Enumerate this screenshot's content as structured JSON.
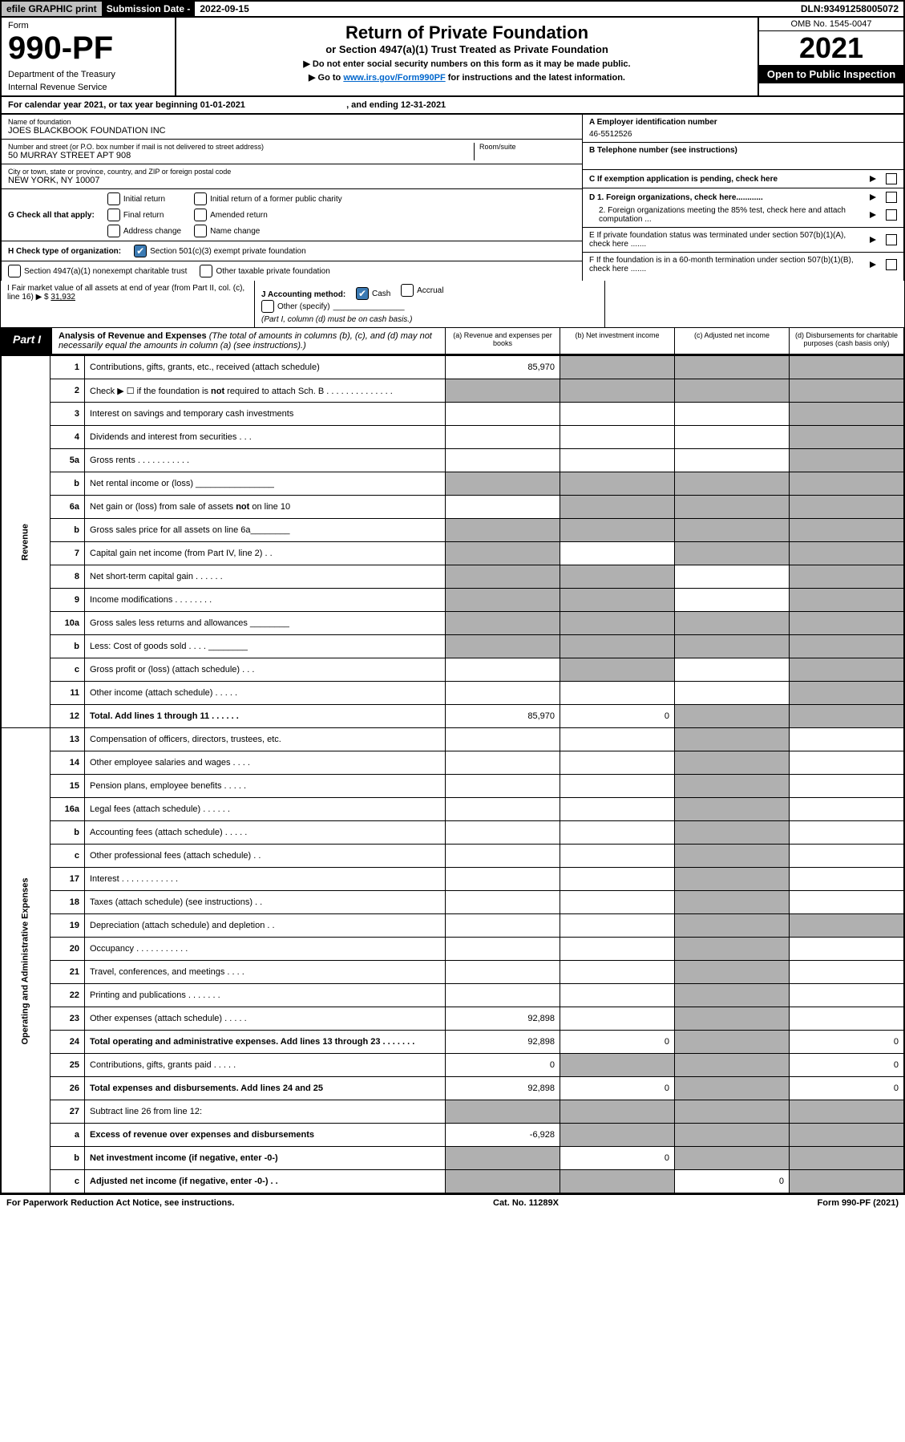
{
  "topbar": {
    "efile": "efile GRAPHIC print",
    "subdate_label": "Submission Date - ",
    "subdate": "2022-09-15",
    "dln_label": "DLN: ",
    "dln": "93491258005072"
  },
  "hdr": {
    "form": "Form",
    "formno": "990-PF",
    "dept1": "Department of the Treasury",
    "dept2": "Internal Revenue Service",
    "title": "Return of Private Foundation",
    "subtitle": "or Section 4947(a)(1) Trust Treated as Private Foundation",
    "warn": "▶ Do not enter social security numbers on this form as it may be made public.",
    "goto1": "▶ Go to ",
    "goto_link": "www.irs.gov/Form990PF",
    "goto2": " for instructions and the latest information.",
    "omb": "OMB No. 1545-0047",
    "year": "2021",
    "inspect": "Open to Public Inspection"
  },
  "calyear": {
    "text1": "For calendar year 2021, or tax year beginning ",
    "begin": "01-01-2021",
    "text2": ", and ending ",
    "end": "12-31-2021"
  },
  "infoL": {
    "name_label": "Name of foundation",
    "name": "JOES BLACKBOOK FOUNDATION INC",
    "addr_label": "Number and street (or P.O. box number if mail is not delivered to street address)",
    "room_label": "Room/suite",
    "addr": "50 MURRAY STREET APT 908",
    "city_label": "City or town, state or province, country, and ZIP or foreign postal code",
    "city": "New York, NY  10007",
    "g_label": "G Check all that apply:",
    "g1": "Initial return",
    "g2": "Final return",
    "g3": "Address change",
    "g4": "Initial return of a former public charity",
    "g5": "Amended return",
    "g6": "Name change",
    "h_label": "H Check type of organization:",
    "h1": "Section 501(c)(3) exempt private foundation",
    "h2": "Section 4947(a)(1) nonexempt charitable trust",
    "h3": "Other taxable private foundation"
  },
  "infoR": {
    "a_label": "A Employer identification number",
    "a": "46-5512526",
    "b_label": "B Telephone number (see instructions)",
    "b": "",
    "c_label": "C If exemption application is pending, check here",
    "d1_label": "D 1. Foreign organizations, check here............",
    "d2_label": "2. Foreign organizations meeting the 85% test, check here and attach computation ...",
    "e_label": "E  If private foundation status was terminated under section 507(b)(1)(A), check here .......",
    "f_label": "F  If the foundation is in a 60-month termination under section 507(b)(1)(B), check here ......."
  },
  "fmv": {
    "i_label": "I Fair market value of all assets at end of year (from Part II, col. (c), line 16) ▶ $",
    "i_val": "31,932",
    "j_label": "J Accounting method:",
    "j1": "Cash",
    "j2": "Accrual",
    "j3": "Other (specify)",
    "j_note": "(Part I, column (d) must be on cash basis.)"
  },
  "part1": {
    "label": "Part I",
    "title": "Analysis of Revenue and Expenses ",
    "note": "(The total of amounts in columns (b), (c), and (d) may not necessarily equal the amounts in column (a) (see instructions).)",
    "colA": "(a)  Revenue and expenses per books",
    "colB": "(b)  Net investment income",
    "colC": "(c)  Adjusted net income",
    "colD": "(d)  Disbursements for charitable purposes (cash basis only)"
  },
  "sideRev": "Revenue",
  "sideExp": "Operating and Administrative Expenses",
  "rows": [
    {
      "n": "1",
      "d": "Contributions, gifts, grants, etc., received (attach schedule)",
      "a": "85,970",
      "bs": true,
      "cs": true,
      "ds": true
    },
    {
      "n": "2",
      "d": "Check ▶ ☐ if the foundation is not required to attach Sch. B   .   .   .   .   .   .   .   .   .   .   .   .   .   .",
      "as": true,
      "bs": true,
      "cs": true,
      "ds": true
    },
    {
      "n": "3",
      "d": "Interest on savings and temporary cash investments",
      "ds": true
    },
    {
      "n": "4",
      "d": "Dividends and interest from securities   .   .   .",
      "ds": true
    },
    {
      "n": "5a",
      "d": "Gross rents   .   .   .   .   .   .   .   .   .   .   .",
      "ds": true
    },
    {
      "n": "b",
      "d": "Net rental income or (loss) ________________",
      "as": true,
      "bs": true,
      "cs": true,
      "ds": true
    },
    {
      "n": "6a",
      "d": "Net gain or (loss) from sale of assets not on line 10",
      "bs": true,
      "cs": true,
      "ds": true
    },
    {
      "n": "b",
      "d": "Gross sales price for all assets on line 6a________",
      "as": true,
      "bs": true,
      "cs": true,
      "ds": true
    },
    {
      "n": "7",
      "d": "Capital gain net income (from Part IV, line 2)   .   .",
      "as": true,
      "cs": true,
      "ds": true
    },
    {
      "n": "8",
      "d": "Net short-term capital gain   .   .   .   .   .   .",
      "as": true,
      "bs": true,
      "ds": true
    },
    {
      "n": "9",
      "d": "Income modifications   .   .   .   .   .   .   .   .",
      "as": true,
      "bs": true,
      "ds": true
    },
    {
      "n": "10a",
      "d": "Gross sales less returns and allowances  ________",
      "as": true,
      "bs": true,
      "cs": true,
      "ds": true
    },
    {
      "n": "b",
      "d": "Less: Cost of goods sold   .   .   .   .  ________",
      "as": true,
      "bs": true,
      "cs": true,
      "ds": true
    },
    {
      "n": "c",
      "d": "Gross profit or (loss) (attach schedule)   .   .   .",
      "bs": true,
      "ds": true
    },
    {
      "n": "11",
      "d": "Other income (attach schedule)   .   .   .   .   .",
      "ds": true
    },
    {
      "n": "12",
      "d": "Total. Add lines 1 through 11   .   .   .   .   .   .",
      "bold": true,
      "a": "85,970",
      "b": "0",
      "cs": true,
      "ds": true
    },
    {
      "n": "13",
      "d": "Compensation of officers, directors, trustees, etc.",
      "cs": true
    },
    {
      "n": "14",
      "d": "Other employee salaries and wages   .   .   .   .",
      "cs": true
    },
    {
      "n": "15",
      "d": "Pension plans, employee benefits   .   .   .   .   .",
      "cs": true
    },
    {
      "n": "16a",
      "d": "Legal fees (attach schedule)   .   .   .   .   .   .",
      "cs": true
    },
    {
      "n": "b",
      "d": "Accounting fees (attach schedule)   .   .   .   .   .",
      "cs": true
    },
    {
      "n": "c",
      "d": "Other professional fees (attach schedule)   .   .",
      "cs": true
    },
    {
      "n": "17",
      "d": "Interest   .   .   .   .   .   .   .   .   .   .   .   .",
      "cs": true
    },
    {
      "n": "18",
      "d": "Taxes (attach schedule) (see instructions)   .   .",
      "cs": true
    },
    {
      "n": "19",
      "d": "Depreciation (attach schedule) and depletion   .   .",
      "cs": true,
      "ds": true
    },
    {
      "n": "20",
      "d": "Occupancy   .   .   .   .   .   .   .   .   .   .   .",
      "cs": true
    },
    {
      "n": "21",
      "d": "Travel, conferences, and meetings   .   .   .   .",
      "cs": true
    },
    {
      "n": "22",
      "d": "Printing and publications   .   .   .   .   .   .   .",
      "cs": true
    },
    {
      "n": "23",
      "d": "Other expenses (attach schedule)   .   .   .   .   .",
      "a": "92,898",
      "cs": true
    },
    {
      "n": "24",
      "d": "Total operating and administrative expenses. Add lines 13 through 23   .   .   .   .   .   .   .",
      "bold": true,
      "a": "92,898",
      "b": "0",
      "cs": true,
      "dd": "0"
    },
    {
      "n": "25",
      "d": "Contributions, gifts, grants paid   .   .   .   .   .",
      "a": "0",
      "bs": true,
      "cs": true,
      "dd": "0"
    },
    {
      "n": "26",
      "d": "Total expenses and disbursements. Add lines 24 and 25",
      "bold": true,
      "a": "92,898",
      "b": "0",
      "cs": true,
      "dd": "0"
    },
    {
      "n": "27",
      "d": "Subtract line 26 from line 12:",
      "as": true,
      "bs": true,
      "cs": true,
      "ds": true
    },
    {
      "n": "a",
      "d": "Excess of revenue over expenses and disbursements",
      "bold": true,
      "a": "-6,928",
      "bs": true,
      "cs": true,
      "ds": true
    },
    {
      "n": "b",
      "d": "Net investment income (if negative, enter -0-)",
      "bold": true,
      "as": true,
      "b": "0",
      "cs": true,
      "ds": true
    },
    {
      "n": "c",
      "d": "Adjusted net income (if negative, enter -0-)   .   .",
      "bold": true,
      "as": true,
      "bs": true,
      "c": "0",
      "ds": true
    }
  ],
  "footer": {
    "left": "For Paperwork Reduction Act Notice, see instructions.",
    "mid": "Cat. No. 11289X",
    "right": "Form 990-PF (2021)"
  }
}
